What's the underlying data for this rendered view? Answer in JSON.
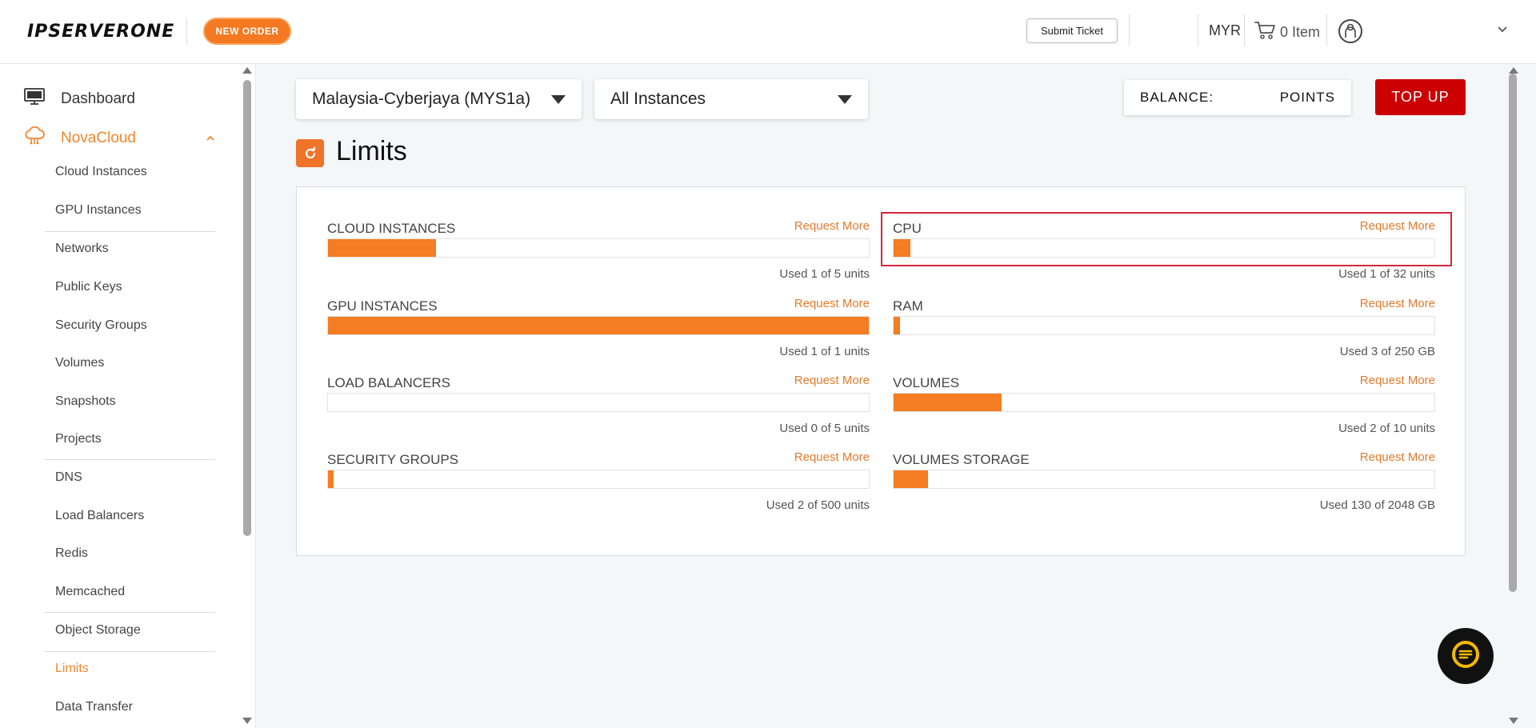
{
  "header": {
    "logo_text": "IPSERVERONE",
    "new_order_label": "NEW ORDER",
    "submit_ticket_label": "Submit Ticket",
    "currency": "MYR",
    "cart_label": "0 Item"
  },
  "sidebar": {
    "top_items": [
      {
        "label": "Dashboard",
        "icon": "monitor-icon"
      },
      {
        "label": "NovaCloud",
        "icon": "cloud-icon",
        "expanded": true
      }
    ],
    "sub_items": [
      {
        "label": "Cloud Instances"
      },
      {
        "label": "GPU Instances"
      },
      {
        "label": "Networks"
      },
      {
        "label": "Public Keys"
      },
      {
        "label": "Security Groups"
      },
      {
        "label": "Volumes"
      },
      {
        "label": "Snapshots"
      },
      {
        "label": "Projects"
      },
      {
        "label": "DNS"
      },
      {
        "label": "Load Balancers"
      },
      {
        "label": "Redis"
      },
      {
        "label": "Memcached"
      },
      {
        "label": "Object Storage"
      },
      {
        "label": "Limits",
        "active": true
      },
      {
        "label": "Data Transfer"
      }
    ]
  },
  "filters": {
    "region_selected": "Malaysia-Cyberjaya (MYS1a)",
    "instances_selected": "All Instances"
  },
  "balance": {
    "label": "BALANCE:",
    "unit": "POINTS"
  },
  "topup_label": "TOP UP",
  "page_title": "Limits",
  "limits": [
    {
      "name": "CLOUD INSTANCES",
      "request": "Request More",
      "usage": "Used 1 of 5 units",
      "used": 1,
      "total": 5
    },
    {
      "name": "CPU",
      "request": "Request More",
      "usage": "Used 1 of 32 units",
      "used": 1,
      "total": 32
    },
    {
      "name": "GPU INSTANCES",
      "request": "Request More",
      "usage": "Used 1 of 1 units",
      "used": 1,
      "total": 1
    },
    {
      "name": "RAM",
      "request": "Request More",
      "usage": "Used 3 of 250 GB",
      "used": 3,
      "total": 250
    },
    {
      "name": "LOAD BALANCERS",
      "request": "Request More",
      "usage": "Used 0 of 5 units",
      "used": 0,
      "total": 5
    },
    {
      "name": "VOLUMES",
      "request": "Request More",
      "usage": "Used 2 of 10 units",
      "used": 2,
      "total": 10
    },
    {
      "name": "SECURITY GROUPS",
      "request": "Request More",
      "usage": "Used 2 of 500 units",
      "used": 2,
      "total": 500
    },
    {
      "name": "VOLUMES STORAGE",
      "request": "Request More",
      "usage": "Used 130 of 2048 GB",
      "used": 130,
      "total": 2048
    }
  ],
  "colors": {
    "accent": "#f47d23",
    "topup": "#cc0000",
    "highlight_border": "#d7263d"
  }
}
